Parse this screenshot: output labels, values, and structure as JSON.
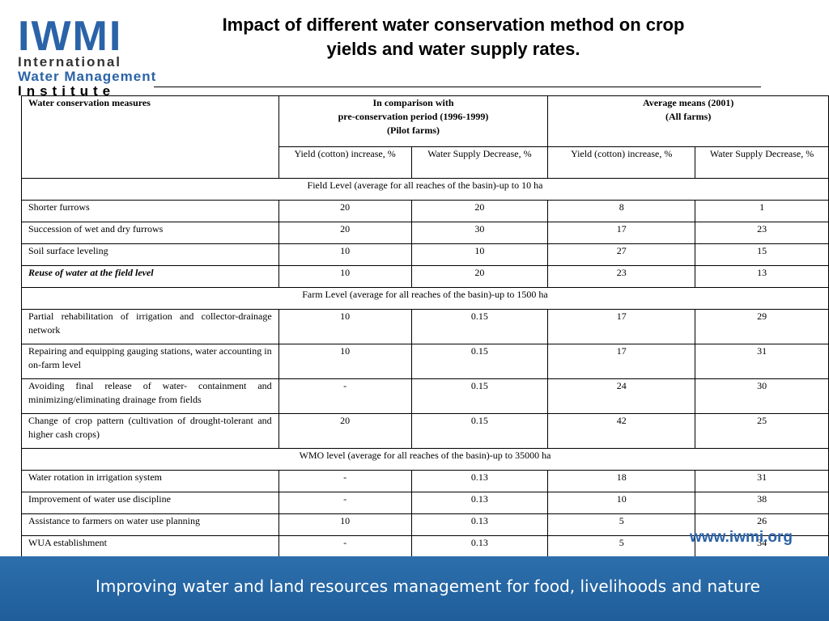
{
  "logo": {
    "mark": "IWMI",
    "line1": "International",
    "line2": "Water Management",
    "line3": "Institute"
  },
  "title": {
    "line1": "Impact of different water conservation method on crop",
    "line2": "yields and water supply rates."
  },
  "table": {
    "header": {
      "measures": "Water conservation measures",
      "group1_l1": "In comparison with",
      "group1_l2": "pre-conservation period (1996-1999)",
      "group1_l3": "(Pilot farms)",
      "group2_l1": "Average means (2001)",
      "group2_l2": "(All farms)",
      "col_yield": "Yield (cotton) increase, %",
      "col_supply": "Water Supply  Decrease, %"
    },
    "sections": [
      {
        "title": "Field Level (average for all reaches of the basin)-up to 10 ha",
        "rows": [
          {
            "measure": "Shorter furrows",
            "v1": "20",
            "v2": "20",
            "v3": "8",
            "v4": "1"
          },
          {
            "measure": "Succession of wet and dry furrows",
            "v1": "20",
            "v2": "30",
            "v3": "17",
            "v4": "23"
          },
          {
            "measure": "Soil surface leveling",
            "v1": "10",
            "v2": "10",
            "v3": "27",
            "v4": "15"
          },
          {
            "measure": "Reuse of water at  the field level",
            "v1": "10",
            "v2": "20",
            "v3": "23",
            "v4": "13"
          }
        ]
      },
      {
        "title": "Farm Level (average for all reaches of the basin)-up to 1500 ha",
        "rows": [
          {
            "measure": "Partial rehabilitation of  irrigation and collector-drainage network",
            "v1": "10",
            "v2": "0.15",
            "v3": "17",
            "v4": "29"
          },
          {
            "measure": "Repairing and equipping gauging stations,  water accounting  in on-farm level",
            "v1": "10",
            "v2": "0.15",
            "v3": "17",
            "v4": "31"
          },
          {
            "measure": "Avoiding  final release of water- containment and minimizing/eliminating drainage  from fields",
            "v1": "-",
            "v2": "0.15",
            "v3": "24",
            "v4": "30"
          },
          {
            "measure": "Change of crop pattern (cultivation of drought-tolerant and higher cash crops)",
            "v1": "20",
            "v2": "0.15",
            "v3": "42",
            "v4": "25"
          }
        ]
      },
      {
        "title": "WMO level (average for all reaches of the basin)-up to 35000 ha",
        "rows": [
          {
            "measure": "Water rotation in irrigation system",
            "v1": "-",
            "v2": "0.13",
            "v3": "18",
            "v4": "31"
          },
          {
            "measure": "Improvement of water use discipline",
            "v1": "-",
            "v2": "0.13",
            "v3": "10",
            "v4": "38"
          },
          {
            "measure": "Assistance to farmers on water use planning",
            "v1": "10",
            "v2": "0.13",
            "v3": "5",
            "v4": "26"
          },
          {
            "measure": "WUA establishment",
            "v1": "-",
            "v2": "0.13",
            "v3": "5",
            "v4": "34"
          }
        ]
      }
    ]
  },
  "footer": {
    "website": "www.iwmi.org",
    "tagline": "Improving water and land resources management for food, livelihoods and nature",
    "band_color": "#2c6fac"
  }
}
